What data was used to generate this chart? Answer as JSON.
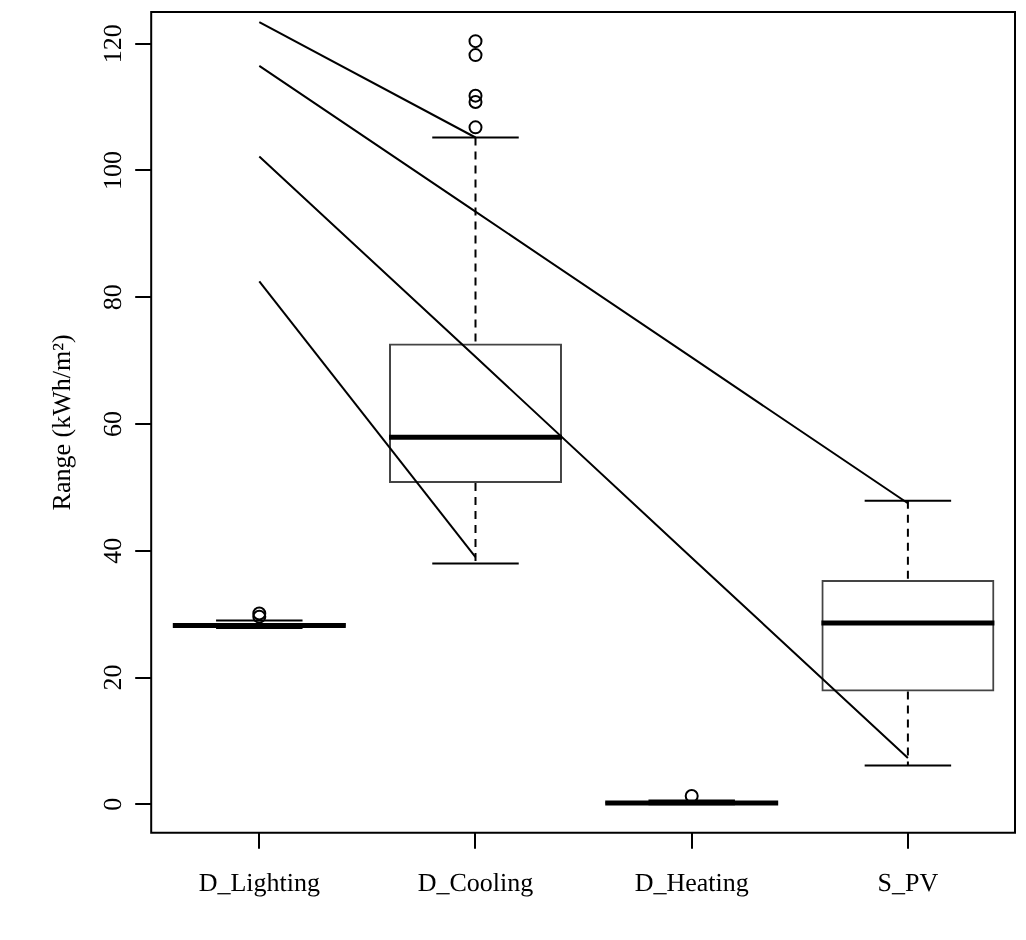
{
  "chart_data": {
    "type": "box",
    "ylabel": "Range (kWh/m²)",
    "categories": [
      "D_Lighting",
      "D_Cooling",
      "D_Heating",
      "S_PV"
    ],
    "boxes": [
      {
        "low": 27.8,
        "q1": 28.0,
        "median": 28.2,
        "q3": 28.6,
        "high": 29.0,
        "outliers": [
          29.6,
          30.1
        ]
      },
      {
        "low": 38,
        "q1": 50.7,
        "median": 57.9,
        "q3": 72.7,
        "high": 105.2,
        "outliers": [
          106.8,
          110.8,
          111.8,
          118.2,
          120.4
        ]
      },
      {
        "low": 0,
        "q1": 0.1,
        "median": 0.2,
        "q3": 0.4,
        "high": 0.6,
        "outliers": [
          1.3
        ]
      },
      {
        "low": 6.1,
        "q1": 17.8,
        "median": 28.6,
        "q3": 35.4,
        "high": 47.9
      }
    ],
    "series": [
      {
        "type": "line",
        "color": "#000000",
        "values": [
          82.5,
          39,
          null,
          null
        ]
      },
      {
        "type": "line",
        "color": "#000000",
        "values": [
          102.2,
          70.6,
          38.9,
          7.3
        ]
      },
      {
        "type": "line",
        "color": "#000000",
        "values": [
          116.5,
          93.5,
          70.5,
          47.5
        ]
      },
      {
        "type": "line",
        "color": "#000000",
        "values": [
          123.4,
          105.2,
          null,
          null
        ]
      }
    ],
    "ylim": [
      -4.5,
      125
    ],
    "yticks": [
      0,
      20,
      40,
      60,
      80,
      100,
      120
    ],
    "grid": false,
    "legend": false
  }
}
